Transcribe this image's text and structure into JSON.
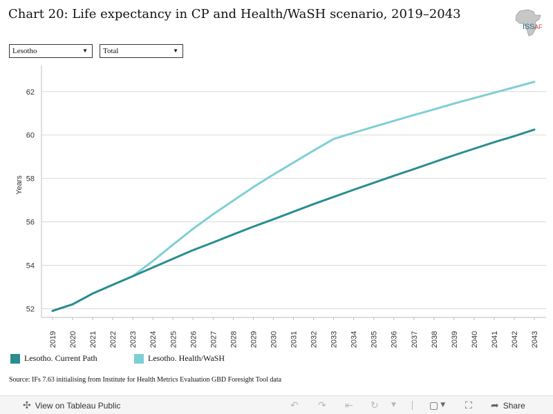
{
  "title": "Chart 20: Life expectancy in CP and Health/WaSH scenario, 2019–2043",
  "logo": {
    "text": "ISS",
    "sub": "AF"
  },
  "filters": {
    "country": "Lesotho",
    "type": "Total"
  },
  "source": "Source: IFs 7.63 initialising from Institute for Health Metrics Evaluation GBD Foresight Tool data",
  "footer": {
    "view_label": "View on Tableau Public",
    "share_label": "Share"
  },
  "colors": {
    "current_path": "#2a8d8f",
    "health_wash": "#7ecfd4",
    "grid": "#d9d9d9",
    "axis": "#bdbdbd"
  },
  "chart_data": {
    "type": "line",
    "title": "Chart 20: Life expectancy in CP and Health/WaSH scenario, 2019–2043",
    "xlabel": "",
    "ylabel": "Years",
    "ylim": [
      51.6,
      63.2
    ],
    "yticks": [
      52,
      54,
      56,
      58,
      60,
      62
    ],
    "grid": true,
    "legend_position": "bottom",
    "x": [
      2019,
      2020,
      2021,
      2022,
      2023,
      2024,
      2025,
      2026,
      2027,
      2028,
      2029,
      2030,
      2031,
      2032,
      2033,
      2034,
      2035,
      2036,
      2037,
      2038,
      2039,
      2040,
      2041,
      2042,
      2043
    ],
    "series": [
      {
        "name": "Lesotho. Current Path",
        "color": "#2a8d8f",
        "values": [
          51.9,
          52.2,
          52.7,
          53.1,
          53.5,
          53.9,
          54.3,
          54.7,
          55.05,
          55.42,
          55.78,
          56.12,
          56.47,
          56.82,
          57.15,
          57.48,
          57.8,
          58.12,
          58.43,
          58.75,
          59.07,
          59.37,
          59.67,
          59.95,
          60.25
        ]
      },
      {
        "name": "Lesotho. Health/WaSH",
        "color": "#7ecfd4",
        "values": [
          51.9,
          52.2,
          52.7,
          53.1,
          53.5,
          54.2,
          54.95,
          55.68,
          56.35,
          56.98,
          57.6,
          58.18,
          58.73,
          59.28,
          59.82,
          60.1,
          60.38,
          60.65,
          60.92,
          61.18,
          61.45,
          61.7,
          61.95,
          62.2,
          62.45
        ]
      }
    ]
  }
}
